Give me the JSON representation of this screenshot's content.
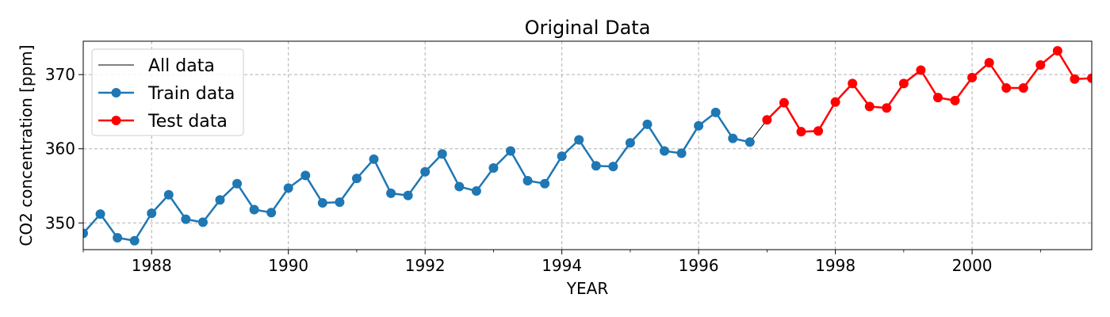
{
  "chart_data": {
    "type": "line",
    "title": "Original Data",
    "xlabel": "YEAR",
    "ylabel": "CO2 concentration [ppm]",
    "xlim": [
      1987.0,
      2001.75
    ],
    "ylim": [
      346.4,
      374.5
    ],
    "x_ticks": [
      1988,
      1990,
      1992,
      1994,
      1996,
      1998,
      2000
    ],
    "y_ticks": [
      350,
      360,
      370
    ],
    "grid": true,
    "legend_position": "upper left",
    "series": [
      {
        "name": "All data",
        "color": "#000000",
        "style": "thin-line",
        "x": [
          1987.0,
          1987.25,
          1987.5,
          1987.75,
          1988.0,
          1988.25,
          1988.5,
          1988.75,
          1989.0,
          1989.25,
          1989.5,
          1989.75,
          1990.0,
          1990.25,
          1990.5,
          1990.75,
          1991.0,
          1991.25,
          1991.5,
          1991.75,
          1992.0,
          1992.25,
          1992.5,
          1992.75,
          1993.0,
          1993.25,
          1993.5,
          1993.75,
          1994.0,
          1994.25,
          1994.5,
          1994.75,
          1995.0,
          1995.25,
          1995.5,
          1995.75,
          1996.0,
          1996.25,
          1996.5,
          1996.75,
          1997.0,
          1997.25,
          1997.5,
          1997.75,
          1998.0,
          1998.25,
          1998.5,
          1998.75,
          1999.0,
          1999.25,
          1999.5,
          1999.75,
          2000.0,
          2000.25,
          2000.5,
          2000.75,
          2001.0,
          2001.25,
          2001.5,
          2001.75
        ],
        "y": [
          348.6,
          351.2,
          348.0,
          347.6,
          351.3,
          353.8,
          350.5,
          350.1,
          353.1,
          355.3,
          351.8,
          351.4,
          354.7,
          356.4,
          352.7,
          352.8,
          356.0,
          358.6,
          354.0,
          353.7,
          356.9,
          359.3,
          354.9,
          354.3,
          357.4,
          359.7,
          355.7,
          355.3,
          359.0,
          361.2,
          357.7,
          357.6,
          360.8,
          363.3,
          359.7,
          359.4,
          363.1,
          364.9,
          361.4,
          360.9,
          363.9,
          366.2,
          362.3,
          362.4,
          366.3,
          368.8,
          365.7,
          365.5,
          368.8,
          370.6,
          366.9,
          366.5,
          369.6,
          371.6,
          368.2,
          368.2,
          371.3,
          373.2,
          369.4,
          369.5
        ]
      },
      {
        "name": "Train data",
        "color": "#1f77b4",
        "style": "line-marker",
        "x": [
          1987.0,
          1987.25,
          1987.5,
          1987.75,
          1988.0,
          1988.25,
          1988.5,
          1988.75,
          1989.0,
          1989.25,
          1989.5,
          1989.75,
          1990.0,
          1990.25,
          1990.5,
          1990.75,
          1991.0,
          1991.25,
          1991.5,
          1991.75,
          1992.0,
          1992.25,
          1992.5,
          1992.75,
          1993.0,
          1993.25,
          1993.5,
          1993.75,
          1994.0,
          1994.25,
          1994.5,
          1994.75,
          1995.0,
          1995.25,
          1995.5,
          1995.75,
          1996.0,
          1996.25,
          1996.5,
          1996.75
        ],
        "y": [
          348.6,
          351.2,
          348.0,
          347.6,
          351.3,
          353.8,
          350.5,
          350.1,
          353.1,
          355.3,
          351.8,
          351.4,
          354.7,
          356.4,
          352.7,
          352.8,
          356.0,
          358.6,
          354.0,
          353.7,
          356.9,
          359.3,
          354.9,
          354.3,
          357.4,
          359.7,
          355.7,
          355.3,
          359.0,
          361.2,
          357.7,
          357.6,
          360.8,
          363.3,
          359.7,
          359.4,
          363.1,
          364.9,
          361.4,
          360.9
        ]
      },
      {
        "name": "Test data",
        "color": "#ff0000",
        "style": "line-marker",
        "x": [
          1997.0,
          1997.25,
          1997.5,
          1997.75,
          1998.0,
          1998.25,
          1998.5,
          1998.75,
          1999.0,
          1999.25,
          1999.5,
          1999.75,
          2000.0,
          2000.25,
          2000.5,
          2000.75,
          2001.0,
          2001.25,
          2001.5,
          2001.75
        ],
        "y": [
          363.9,
          366.2,
          362.3,
          362.4,
          366.3,
          368.8,
          365.7,
          365.5,
          368.8,
          370.6,
          366.9,
          366.5,
          369.6,
          371.6,
          368.2,
          368.2,
          371.3,
          373.2,
          369.4,
          369.5
        ]
      }
    ]
  }
}
